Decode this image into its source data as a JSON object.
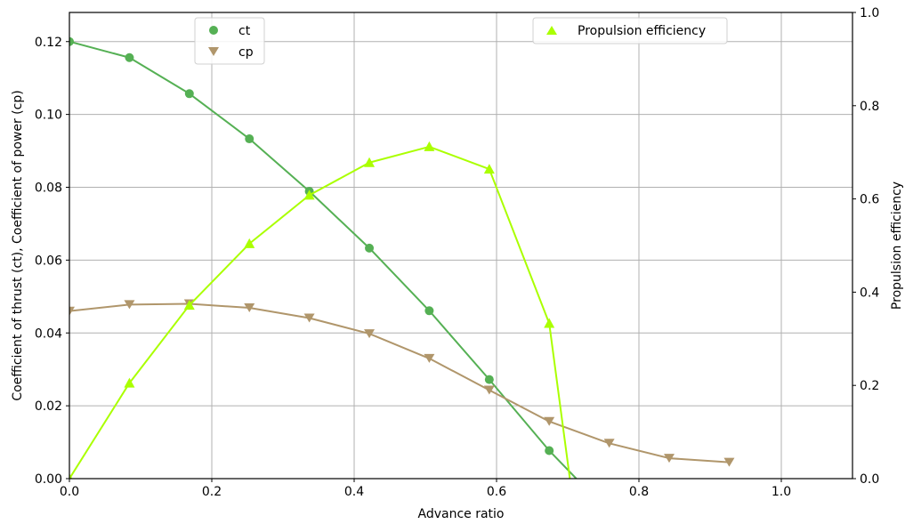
{
  "chart_data": {
    "type": "line",
    "xlabel": "Advance ratio",
    "ylabel_left": "Coefficient of thrust (ct), Coefficient of power (cp)",
    "ylabel_right": "Propulsion efficiency",
    "xlim": [
      0.0,
      1.1
    ],
    "ylim_left": [
      0.0,
      0.128
    ],
    "ylim_right": [
      0.0,
      1.0
    ],
    "x_ticks": [
      0.0,
      0.2,
      0.4,
      0.6,
      0.8,
      1.0
    ],
    "x_tick_labels": [
      "0.0",
      "0.2",
      "0.4",
      "0.6",
      "0.8",
      "1.0"
    ],
    "y_left_ticks": [
      0.0,
      0.02,
      0.04,
      0.06,
      0.08,
      0.1,
      0.12
    ],
    "y_left_tick_labels": [
      "0.00",
      "0.02",
      "0.04",
      "0.06",
      "0.08",
      "0.10",
      "0.12"
    ],
    "y_right_ticks": [
      0.0,
      0.2,
      0.4,
      0.6,
      0.8,
      1.0
    ],
    "y_right_tick_labels": [
      "0.0",
      "0.2",
      "0.4",
      "0.6",
      "0.8",
      "1.0"
    ],
    "grid": true,
    "series": [
      {
        "name": "ct",
        "axis": "left",
        "color": "#55b054",
        "marker": "circle",
        "x": [
          0.0,
          0.0843,
          0.1685,
          0.2528,
          0.337,
          0.4213,
          0.5055,
          0.5898,
          0.674,
          0.712
        ],
        "y": [
          0.12,
          0.1156,
          0.1057,
          0.0933,
          0.0789,
          0.0633,
          0.0461,
          0.0272,
          0.0077,
          0.0
        ],
        "marker_count": 9
      },
      {
        "name": "cp",
        "axis": "left",
        "color": "#b0966b",
        "marker": "triangle-down",
        "x": [
          0.0,
          0.0843,
          0.1685,
          0.2528,
          0.337,
          0.4213,
          0.5055,
          0.5898,
          0.674,
          0.7583,
          0.8425,
          0.9268
        ],
        "y": [
          0.046,
          0.0478,
          0.048,
          0.0469,
          0.0441,
          0.0398,
          0.033,
          0.0243,
          0.0157,
          0.0097,
          0.0056,
          0.0045
        ],
        "marker_count": 12
      },
      {
        "name": "Propulsion efficiency",
        "axis": "right",
        "color": "#aaff00",
        "marker": "triangle-up",
        "x": [
          0.0,
          0.0843,
          0.1685,
          0.2528,
          0.337,
          0.4213,
          0.5055,
          0.5898,
          0.674,
          0.703
        ],
        "y": [
          0.0,
          0.205,
          0.372,
          0.504,
          0.608,
          0.678,
          0.712,
          0.664,
          0.333,
          0.0
        ],
        "marker_count": 9
      }
    ],
    "legends": [
      {
        "entries": [
          "ct",
          "cp"
        ]
      },
      {
        "entries": [
          "Propulsion efficiency"
        ]
      }
    ]
  }
}
